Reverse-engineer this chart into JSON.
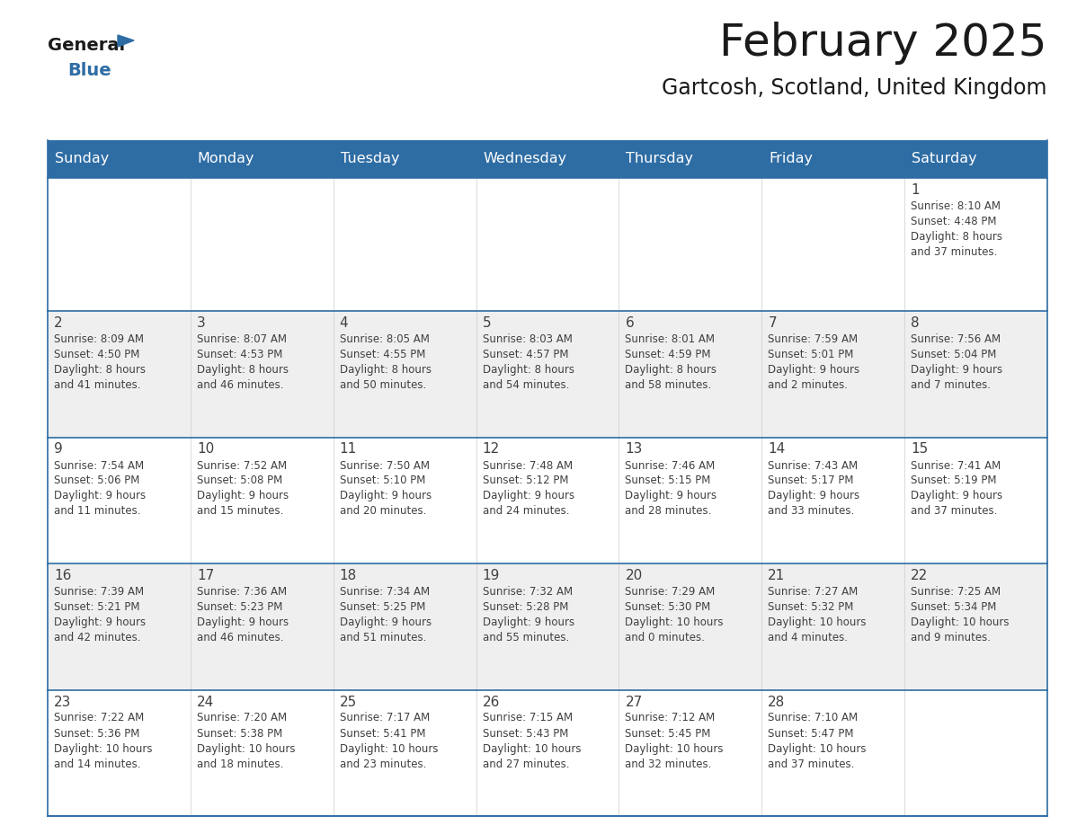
{
  "title": "February 2025",
  "subtitle": "Gartcosh, Scotland, United Kingdom",
  "days_of_week": [
    "Sunday",
    "Monday",
    "Tuesday",
    "Wednesday",
    "Thursday",
    "Friday",
    "Saturday"
  ],
  "header_bg": "#2E6DA4",
  "header_text": "#FFFFFF",
  "cell_bg_light": "#EFEFEF",
  "cell_bg_white": "#FFFFFF",
  "border_color": "#2E6DA4",
  "text_color": "#404040",
  "day_num_color": "#404040",
  "row_bg": [
    "#FFFFFF",
    "#EFEFEF",
    "#FFFFFF",
    "#EFEFEF",
    "#FFFFFF"
  ],
  "calendar_data": [
    [
      null,
      null,
      null,
      null,
      null,
      null,
      {
        "day": 1,
        "sunrise": "8:10 AM",
        "sunset": "4:48 PM",
        "daylight_l1": "Daylight: 8 hours",
        "daylight_l2": "and 37 minutes."
      }
    ],
    [
      {
        "day": 2,
        "sunrise": "8:09 AM",
        "sunset": "4:50 PM",
        "daylight_l1": "Daylight: 8 hours",
        "daylight_l2": "and 41 minutes."
      },
      {
        "day": 3,
        "sunrise": "8:07 AM",
        "sunset": "4:53 PM",
        "daylight_l1": "Daylight: 8 hours",
        "daylight_l2": "and 46 minutes."
      },
      {
        "day": 4,
        "sunrise": "8:05 AM",
        "sunset": "4:55 PM",
        "daylight_l1": "Daylight: 8 hours",
        "daylight_l2": "and 50 minutes."
      },
      {
        "day": 5,
        "sunrise": "8:03 AM",
        "sunset": "4:57 PM",
        "daylight_l1": "Daylight: 8 hours",
        "daylight_l2": "and 54 minutes."
      },
      {
        "day": 6,
        "sunrise": "8:01 AM",
        "sunset": "4:59 PM",
        "daylight_l1": "Daylight: 8 hours",
        "daylight_l2": "and 58 minutes."
      },
      {
        "day": 7,
        "sunrise": "7:59 AM",
        "sunset": "5:01 PM",
        "daylight_l1": "Daylight: 9 hours",
        "daylight_l2": "and 2 minutes."
      },
      {
        "day": 8,
        "sunrise": "7:56 AM",
        "sunset": "5:04 PM",
        "daylight_l1": "Daylight: 9 hours",
        "daylight_l2": "and 7 minutes."
      }
    ],
    [
      {
        "day": 9,
        "sunrise": "7:54 AM",
        "sunset": "5:06 PM",
        "daylight_l1": "Daylight: 9 hours",
        "daylight_l2": "and 11 minutes."
      },
      {
        "day": 10,
        "sunrise": "7:52 AM",
        "sunset": "5:08 PM",
        "daylight_l1": "Daylight: 9 hours",
        "daylight_l2": "and 15 minutes."
      },
      {
        "day": 11,
        "sunrise": "7:50 AM",
        "sunset": "5:10 PM",
        "daylight_l1": "Daylight: 9 hours",
        "daylight_l2": "and 20 minutes."
      },
      {
        "day": 12,
        "sunrise": "7:48 AM",
        "sunset": "5:12 PM",
        "daylight_l1": "Daylight: 9 hours",
        "daylight_l2": "and 24 minutes."
      },
      {
        "day": 13,
        "sunrise": "7:46 AM",
        "sunset": "5:15 PM",
        "daylight_l1": "Daylight: 9 hours",
        "daylight_l2": "and 28 minutes."
      },
      {
        "day": 14,
        "sunrise": "7:43 AM",
        "sunset": "5:17 PM",
        "daylight_l1": "Daylight: 9 hours",
        "daylight_l2": "and 33 minutes."
      },
      {
        "day": 15,
        "sunrise": "7:41 AM",
        "sunset": "5:19 PM",
        "daylight_l1": "Daylight: 9 hours",
        "daylight_l2": "and 37 minutes."
      }
    ],
    [
      {
        "day": 16,
        "sunrise": "7:39 AM",
        "sunset": "5:21 PM",
        "daylight_l1": "Daylight: 9 hours",
        "daylight_l2": "and 42 minutes."
      },
      {
        "day": 17,
        "sunrise": "7:36 AM",
        "sunset": "5:23 PM",
        "daylight_l1": "Daylight: 9 hours",
        "daylight_l2": "and 46 minutes."
      },
      {
        "day": 18,
        "sunrise": "7:34 AM",
        "sunset": "5:25 PM",
        "daylight_l1": "Daylight: 9 hours",
        "daylight_l2": "and 51 minutes."
      },
      {
        "day": 19,
        "sunrise": "7:32 AM",
        "sunset": "5:28 PM",
        "daylight_l1": "Daylight: 9 hours",
        "daylight_l2": "and 55 minutes."
      },
      {
        "day": 20,
        "sunrise": "7:29 AM",
        "sunset": "5:30 PM",
        "daylight_l1": "Daylight: 10 hours",
        "daylight_l2": "and 0 minutes."
      },
      {
        "day": 21,
        "sunrise": "7:27 AM",
        "sunset": "5:32 PM",
        "daylight_l1": "Daylight: 10 hours",
        "daylight_l2": "and 4 minutes."
      },
      {
        "day": 22,
        "sunrise": "7:25 AM",
        "sunset": "5:34 PM",
        "daylight_l1": "Daylight: 10 hours",
        "daylight_l2": "and 9 minutes."
      }
    ],
    [
      {
        "day": 23,
        "sunrise": "7:22 AM",
        "sunset": "5:36 PM",
        "daylight_l1": "Daylight: 10 hours",
        "daylight_l2": "and 14 minutes."
      },
      {
        "day": 24,
        "sunrise": "7:20 AM",
        "sunset": "5:38 PM",
        "daylight_l1": "Daylight: 10 hours",
        "daylight_l2": "and 18 minutes."
      },
      {
        "day": 25,
        "sunrise": "7:17 AM",
        "sunset": "5:41 PM",
        "daylight_l1": "Daylight: 10 hours",
        "daylight_l2": "and 23 minutes."
      },
      {
        "day": 26,
        "sunrise": "7:15 AM",
        "sunset": "5:43 PM",
        "daylight_l1": "Daylight: 10 hours",
        "daylight_l2": "and 27 minutes."
      },
      {
        "day": 27,
        "sunrise": "7:12 AM",
        "sunset": "5:45 PM",
        "daylight_l1": "Daylight: 10 hours",
        "daylight_l2": "and 32 minutes."
      },
      {
        "day": 28,
        "sunrise": "7:10 AM",
        "sunset": "5:47 PM",
        "daylight_l1": "Daylight: 10 hours",
        "daylight_l2": "and 37 minutes."
      },
      null
    ]
  ]
}
